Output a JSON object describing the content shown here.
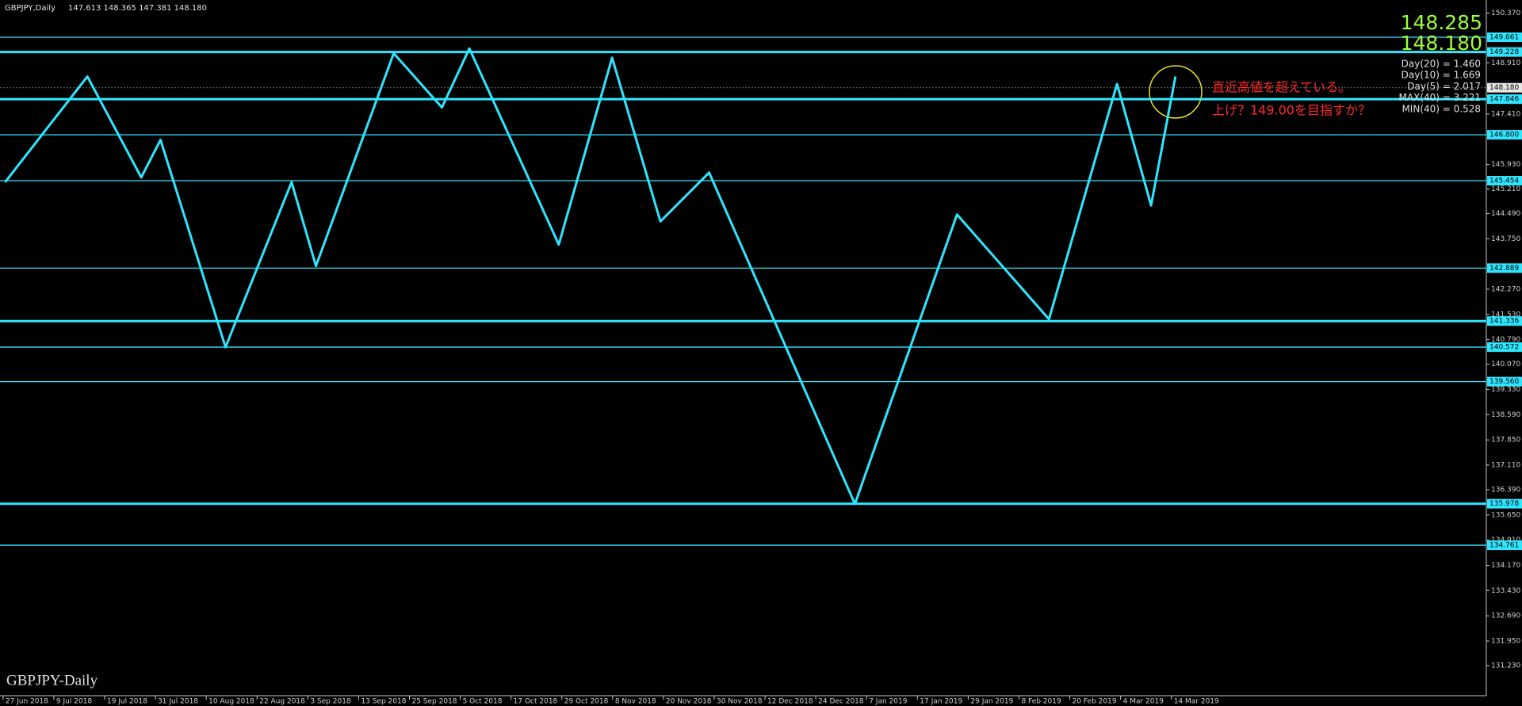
{
  "chart_data": {
    "type": "line",
    "title": "GBPJPY,Daily",
    "ohlc_text": "147.613 148.365 147.381 148.180",
    "watermark": "GBPJPY-Daily",
    "quote": [
      "148.285",
      "148.180"
    ],
    "quote_color": "#9cff3c",
    "stats": [
      "Day(20) = 1.460",
      "Day(10) = 1.669",
      "Day(5) = 2.017",
      "MAX(40) = 3.221",
      "MIN(40) = 0.528"
    ],
    "annotations": [
      "直近高値を超えている。",
      "上げ？149.00を目指すか？"
    ],
    "annotation_color": "#ff2a2a",
    "categories": [
      "27 Jun 2018",
      "9 Jul 2018",
      "19 Jul 2018",
      "31 Jul 2018",
      "10 Aug 2018",
      "22 Aug 2018",
      "3 Sep 2018",
      "13 Sep 2018",
      "25 Sep 2018",
      "5 Oct 2018",
      "17 Oct 2018",
      "29 Oct 2018",
      "8 Nov 2018",
      "20 Nov 2018",
      "30 Nov 2018",
      "12 Dec 2018",
      "24 Dec 2018",
      "7 Jan 2019",
      "17 Jan 2019",
      "29 Jan 2019",
      "8 Feb 2019",
      "20 Feb 2019",
      "4 Mar 2019",
      "14 Mar 2019"
    ],
    "xlim": [
      -0.06,
      29.2
    ],
    "x": [
      0.04,
      1.66,
      2.72,
      3.1,
      4.38,
      5.68,
      6.16,
      7.69,
      8.64,
      9.18,
      10.94,
      11.99,
      12.94,
      13.9,
      16.77,
      18.78,
      20.59,
      21.93,
      22.6,
      23.08
    ],
    "series": [
      {
        "color": "#2ee6ff",
        "values": [
          145.41,
          148.51,
          145.55,
          146.65,
          140.57,
          145.41,
          142.95,
          149.19,
          147.6,
          149.33,
          143.58,
          149.06,
          144.26,
          145.69,
          135.97,
          144.46,
          141.39,
          148.29,
          144.73,
          148.51
        ]
      }
    ],
    "ylim": [
      131.23,
      150.37
    ],
    "yticks": [
      {
        "value": 150.37,
        "label": "150.370"
      },
      {
        "value": 148.91,
        "label": "148.910"
      },
      {
        "value": 147.41,
        "label": "147.410"
      },
      {
        "value": 145.93,
        "label": "145.930"
      },
      {
        "value": 145.21,
        "label": "145.210"
      },
      {
        "value": 144.49,
        "label": "144.490"
      },
      {
        "value": 143.75,
        "label": "143.750"
      },
      {
        "value": 142.27,
        "label": "142.270"
      },
      {
        "value": 141.53,
        "label": "141.530"
      },
      {
        "value": 140.79,
        "label": "140.790"
      },
      {
        "value": 140.07,
        "label": "140.070"
      },
      {
        "value": 139.33,
        "label": "139.330"
      },
      {
        "value": 138.59,
        "label": "138.590"
      },
      {
        "value": 137.85,
        "label": "137.850"
      },
      {
        "value": 137.11,
        "label": "137.110"
      },
      {
        "value": 136.39,
        "label": "136.390"
      },
      {
        "value": 135.65,
        "label": "135.650"
      },
      {
        "value": 134.91,
        "label": "134.910"
      },
      {
        "value": 134.17,
        "label": "134.170"
      },
      {
        "value": 133.43,
        "label": "133.430"
      },
      {
        "value": 132.69,
        "label": "132.690"
      },
      {
        "value": 131.95,
        "label": "131.950"
      },
      {
        "value": 131.23,
        "label": "131.230"
      }
    ],
    "levels": [
      {
        "value": 149.661,
        "label": "149.661",
        "thick": false
      },
      {
        "value": 149.228,
        "label": "149.228",
        "thick": true
      },
      {
        "value": 147.846,
        "label": "147.846",
        "thick": true
      },
      {
        "value": 146.8,
        "label": "146.800",
        "thick": false
      },
      {
        "value": 145.454,
        "label": "145.454",
        "thick": false
      },
      {
        "value": 142.889,
        "label": "142.889",
        "thick": false
      },
      {
        "value": 141.336,
        "label": "141.336",
        "thick": true
      },
      {
        "value": 140.572,
        "label": "140.572",
        "thick": false
      },
      {
        "value": 139.56,
        "label": "139.560",
        "thick": false
      },
      {
        "value": 135.978,
        "label": "135.978",
        "thick": true
      },
      {
        "value": 134.761,
        "label": "134.761",
        "thick": false
      }
    ],
    "level_color": "#2ee6ff",
    "bid": {
      "value": 148.18,
      "label": "148.180"
    }
  }
}
